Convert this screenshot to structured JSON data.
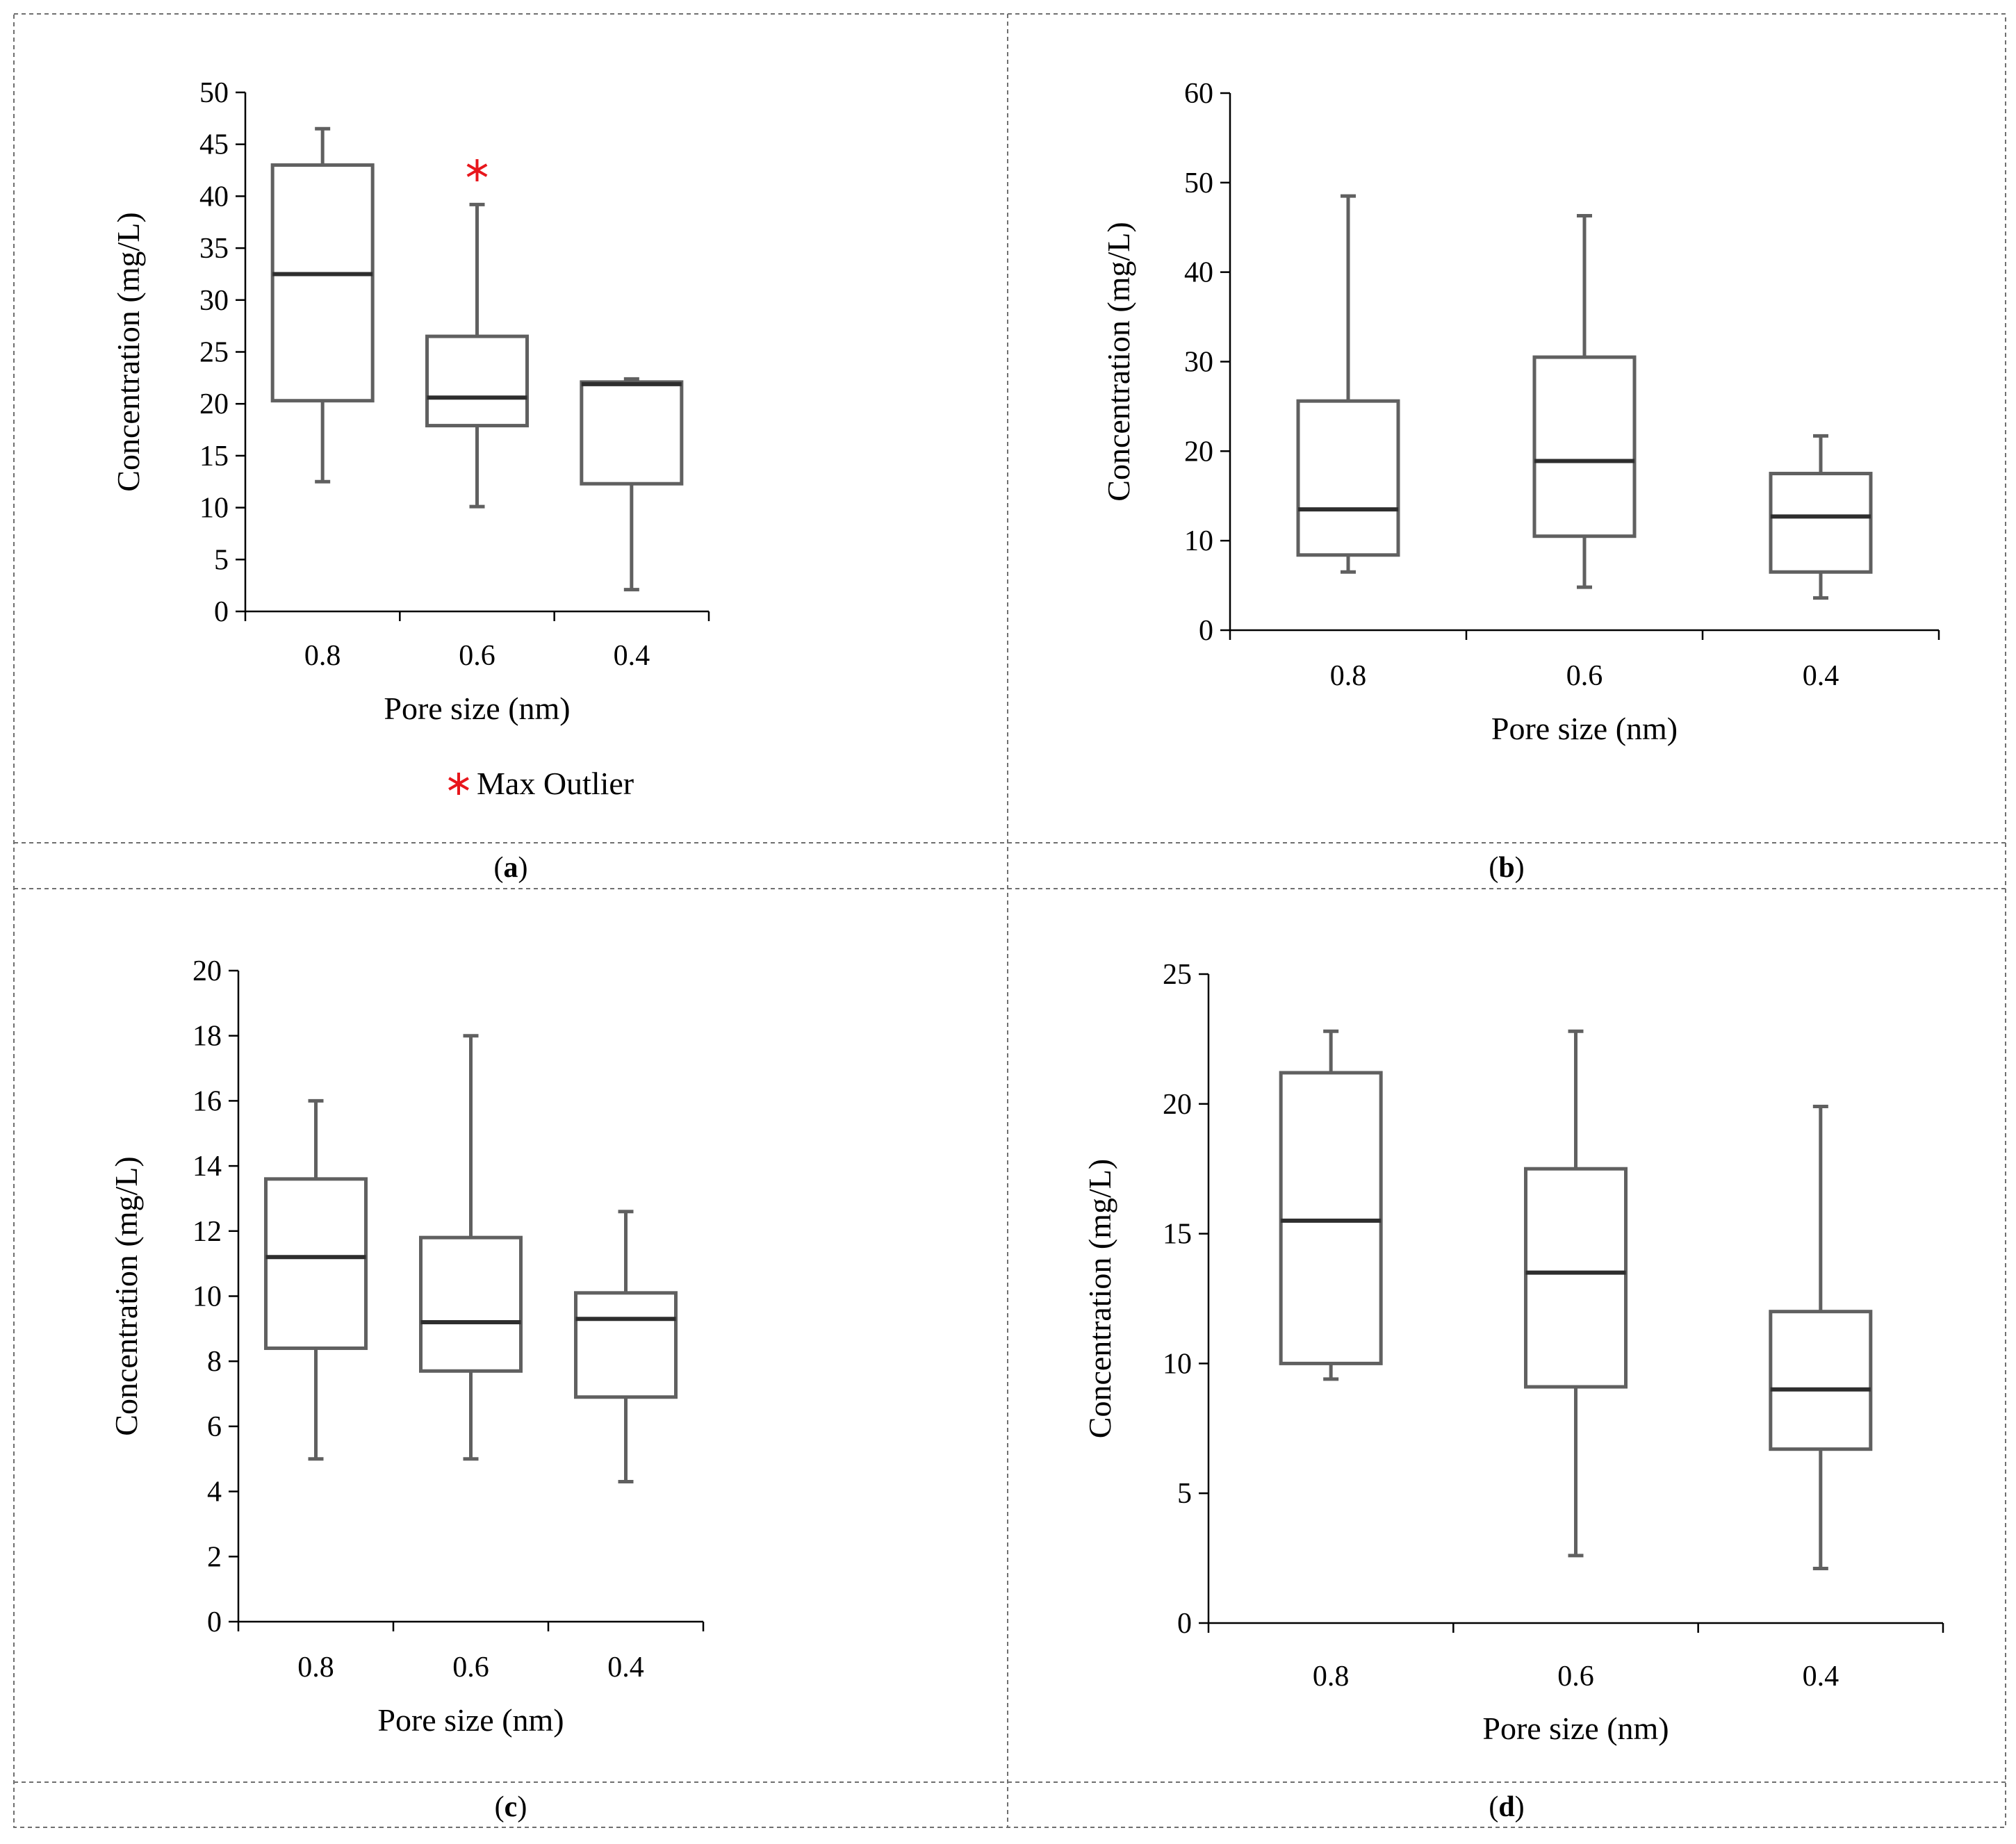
{
  "figure": {
    "caption_prefix": "(",
    "caption_suffix": ")"
  },
  "legend": {
    "outlier_label": "Max Outlier",
    "outlier_color": "#e8161c",
    "outlier_symbol": "asterisk"
  },
  "chart_data": [
    {
      "id": "a",
      "type": "boxplot",
      "caption": "a",
      "xlabel": "Pore size (nm)",
      "ylabel": "Concentration (mg/L)",
      "categories": [
        "0.8",
        "0.6",
        "0.4"
      ],
      "ylim": [
        0,
        50
      ],
      "yticks": [
        0,
        5,
        10,
        15,
        20,
        25,
        30,
        35,
        40,
        45,
        50
      ],
      "boxes": [
        {
          "min": 12.5,
          "q1": 20.3,
          "median": 32.5,
          "q3": 43.0,
          "max": 46.5
        },
        {
          "min": 10.1,
          "q1": 17.9,
          "median": 20.6,
          "q3": 26.5,
          "max": 39.2,
          "outliers": [
            42.5
          ]
        },
        {
          "min": 2.1,
          "q1": 12.3,
          "median": 21.9,
          "q3": 22.1,
          "max": 22.4
        }
      ],
      "legend": true
    },
    {
      "id": "b",
      "type": "boxplot",
      "caption": "b",
      "xlabel": "Pore size (nm)",
      "ylabel": "Concentration (mg/L)",
      "categories": [
        "0.8",
        "0.6",
        "0.4"
      ],
      "ylim": [
        0,
        60
      ],
      "yticks": [
        0,
        10,
        20,
        30,
        40,
        50,
        60
      ],
      "boxes": [
        {
          "min": 6.5,
          "q1": 8.4,
          "median": 13.5,
          "q3": 25.6,
          "max": 48.5
        },
        {
          "min": 4.8,
          "q1": 10.5,
          "median": 18.9,
          "q3": 30.5,
          "max": 46.3
        },
        {
          "min": 3.6,
          "q1": 6.5,
          "median": 12.7,
          "q3": 17.5,
          "max": 21.7
        }
      ],
      "legend": false
    },
    {
      "id": "c",
      "type": "boxplot",
      "caption": "c",
      "xlabel": "Pore size (nm)",
      "ylabel": "Concentration (mg/L)",
      "categories": [
        "0.8",
        "0.6",
        "0.4"
      ],
      "ylim": [
        0,
        20
      ],
      "yticks": [
        0,
        2,
        4,
        6,
        8,
        10,
        12,
        14,
        16,
        18,
        20
      ],
      "boxes": [
        {
          "min": 5.0,
          "q1": 8.4,
          "median": 11.2,
          "q3": 13.6,
          "max": 16.0
        },
        {
          "min": 5.0,
          "q1": 7.7,
          "median": 9.2,
          "q3": 11.8,
          "max": 18.0
        },
        {
          "min": 4.3,
          "q1": 6.9,
          "median": 9.3,
          "q3": 10.1,
          "max": 12.6
        }
      ],
      "legend": false
    },
    {
      "id": "d",
      "type": "boxplot",
      "caption": "d",
      "xlabel": "Pore size (nm)",
      "ylabel": "Concentration (mg/L)",
      "categories": [
        "0.8",
        "0.6",
        "0.4"
      ],
      "ylim": [
        0,
        25
      ],
      "yticks": [
        0,
        5,
        10,
        15,
        20,
        25
      ],
      "boxes": [
        {
          "min": 9.4,
          "q1": 10.0,
          "median": 15.5,
          "q3": 21.2,
          "max": 22.8
        },
        {
          "min": 2.6,
          "q1": 9.1,
          "median": 13.5,
          "q3": 17.5,
          "max": 22.8
        },
        {
          "min": 2.1,
          "q1": 6.7,
          "median": 9.0,
          "q3": 12.0,
          "max": 19.9
        }
      ],
      "legend": false
    }
  ]
}
